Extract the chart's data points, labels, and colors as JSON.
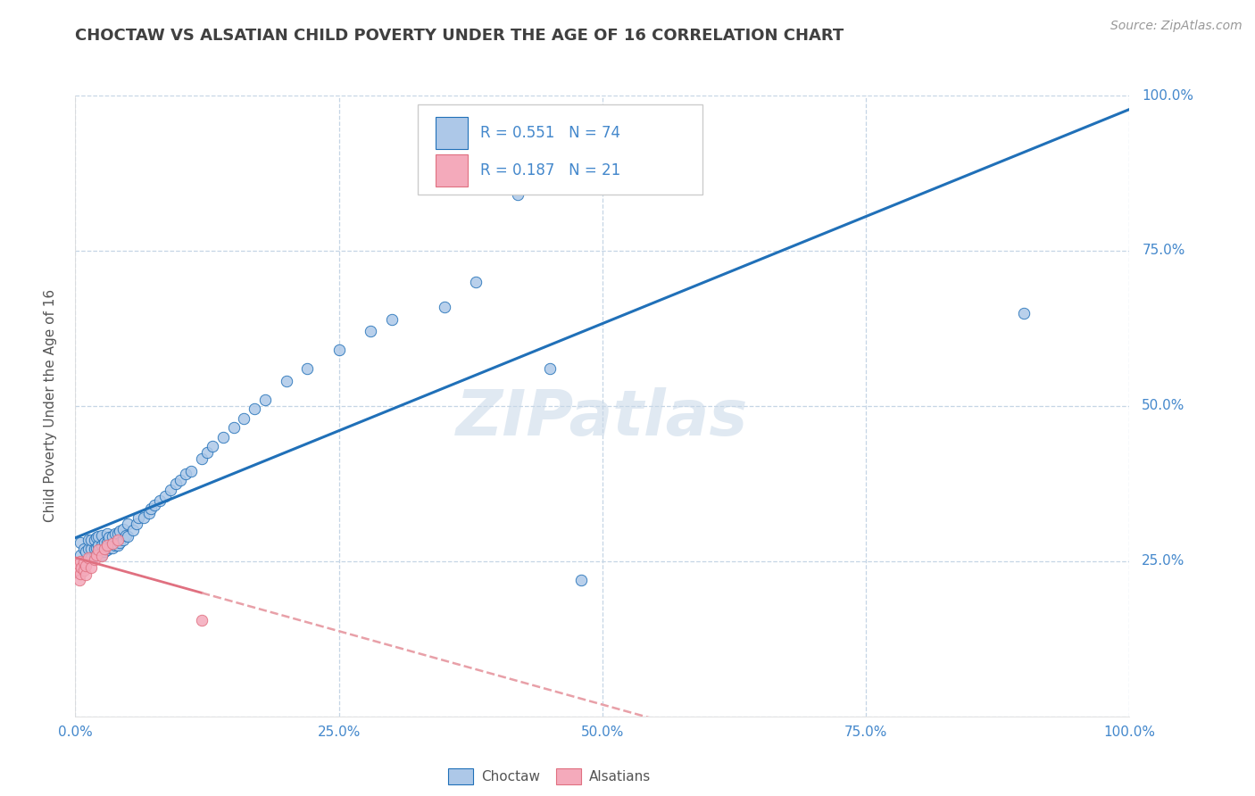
{
  "title": "CHOCTAW VS ALSATIAN CHILD POVERTY UNDER THE AGE OF 16 CORRELATION CHART",
  "source_text": "Source: ZipAtlas.com",
  "ylabel": "Child Poverty Under the Age of 16",
  "choctaw_color": "#adc8e8",
  "alsatian_color": "#f4aabb",
  "choctaw_line_color": "#2070b8",
  "alsatian_line_color": "#e07080",
  "alsatian_dash_color": "#e8a0a8",
  "choctaw_R": 0.551,
  "choctaw_N": 74,
  "alsatian_R": 0.187,
  "alsatian_N": 21,
  "watermark": "ZIPatlas",
  "choctaw_x": [
    0.005,
    0.005,
    0.008,
    0.01,
    0.012,
    0.012,
    0.015,
    0.015,
    0.015,
    0.018,
    0.018,
    0.018,
    0.02,
    0.02,
    0.02,
    0.022,
    0.022,
    0.022,
    0.025,
    0.025,
    0.025,
    0.028,
    0.028,
    0.03,
    0.03,
    0.03,
    0.032,
    0.032,
    0.035,
    0.035,
    0.038,
    0.038,
    0.04,
    0.04,
    0.042,
    0.042,
    0.045,
    0.045,
    0.048,
    0.05,
    0.05,
    0.055,
    0.058,
    0.06,
    0.065,
    0.07,
    0.072,
    0.075,
    0.08,
    0.085,
    0.09,
    0.095,
    0.1,
    0.105,
    0.11,
    0.12,
    0.125,
    0.13,
    0.14,
    0.15,
    0.16,
    0.17,
    0.18,
    0.2,
    0.22,
    0.25,
    0.28,
    0.3,
    0.35,
    0.38,
    0.42,
    0.45,
    0.48,
    0.9
  ],
  "choctaw_y": [
    0.26,
    0.28,
    0.27,
    0.265,
    0.27,
    0.285,
    0.255,
    0.27,
    0.285,
    0.258,
    0.27,
    0.285,
    0.26,
    0.272,
    0.288,
    0.262,
    0.275,
    0.29,
    0.26,
    0.275,
    0.292,
    0.265,
    0.28,
    0.268,
    0.28,
    0.295,
    0.272,
    0.288,
    0.272,
    0.29,
    0.275,
    0.295,
    0.275,
    0.295,
    0.28,
    0.298,
    0.285,
    0.302,
    0.292,
    0.29,
    0.31,
    0.3,
    0.31,
    0.32,
    0.32,
    0.328,
    0.335,
    0.34,
    0.348,
    0.355,
    0.365,
    0.375,
    0.38,
    0.39,
    0.395,
    0.415,
    0.425,
    0.435,
    0.45,
    0.465,
    0.48,
    0.495,
    0.51,
    0.54,
    0.56,
    0.59,
    0.62,
    0.64,
    0.66,
    0.7,
    0.84,
    0.56,
    0.22,
    0.65
  ],
  "alsatian_x": [
    0.003,
    0.003,
    0.004,
    0.005,
    0.005,
    0.006,
    0.008,
    0.008,
    0.01,
    0.01,
    0.012,
    0.015,
    0.018,
    0.02,
    0.022,
    0.025,
    0.028,
    0.03,
    0.035,
    0.04,
    0.12
  ],
  "alsatian_y": [
    0.235,
    0.245,
    0.22,
    0.23,
    0.25,
    0.24,
    0.235,
    0.248,
    0.228,
    0.242,
    0.255,
    0.24,
    0.252,
    0.26,
    0.268,
    0.258,
    0.27,
    0.275,
    0.278,
    0.285,
    0.155
  ],
  "xlim": [
    0.0,
    1.0
  ],
  "ylim": [
    0.0,
    1.0
  ],
  "xticks": [
    0.0,
    0.25,
    0.5,
    0.75,
    1.0
  ],
  "xticklabels": [
    "0.0%",
    "25.0%",
    "50.0%",
    "75.0%",
    "100.0%"
  ],
  "yticks_right": [
    0.25,
    0.5,
    0.75,
    1.0
  ],
  "yticklabels_right": [
    "25.0%",
    "50.0%",
    "75.0%",
    "100.0%"
  ],
  "background_color": "#ffffff",
  "grid_color": "#c5d5e5",
  "title_color": "#404040",
  "tick_color": "#4488cc",
  "ylabel_color": "#555555"
}
